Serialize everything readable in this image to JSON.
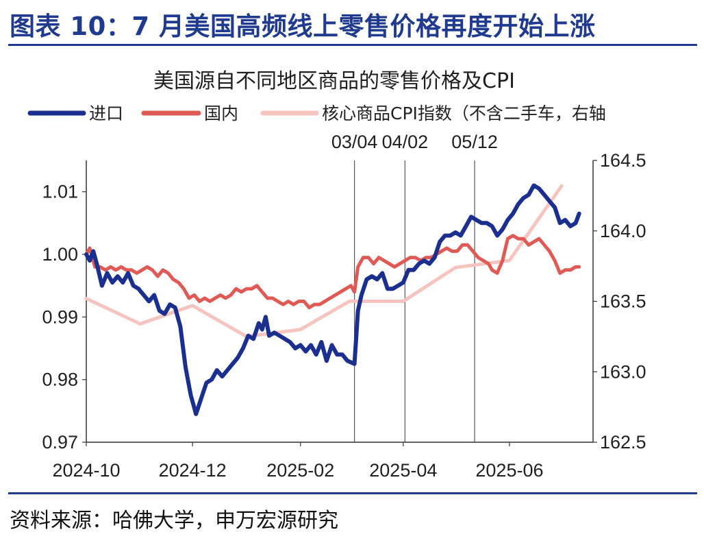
{
  "header": {
    "title": "图表 10：7 月美国高频线上零售价格再度开始上涨"
  },
  "footer": {
    "source": "资料来源：哈佛大学，申万宏源研究"
  },
  "colors": {
    "accent": "#1f3a8f",
    "imports": "#1b2f8f",
    "domestic": "#e05a55",
    "cpi": "#f6c4bf"
  },
  "chart_data": {
    "type": "line",
    "title": "美国源自不同地区商品的零售价格及CPI",
    "x_axis": {
      "range": [
        "2024-10-01",
        "2025-07-19"
      ],
      "tick_labels": [
        {
          "date": "2024-10-01",
          "label": "2024-10"
        },
        {
          "date": "2024-12-01",
          "label": "2024-12"
        },
        {
          "date": "2025-02-01",
          "label": "2025-02"
        },
        {
          "date": "2025-04-01",
          "label": "2025-04"
        },
        {
          "date": "2025-06-01",
          "label": "2025-06"
        }
      ]
    },
    "y_left": {
      "min": 0.97,
      "max": 1.015,
      "ticks": [
        0.97,
        0.98,
        0.99,
        1.0,
        1.01
      ],
      "tick_labels": [
        "0.97",
        "0.98",
        "0.99",
        "1.00",
        "1.01"
      ]
    },
    "y_right": {
      "min": 162.5,
      "max": 164.5,
      "ticks": [
        162.5,
        163.0,
        163.5,
        164.0,
        164.5
      ],
      "tick_labels": [
        "162.5",
        "163.0",
        "163.5",
        "164.0",
        "164.5"
      ]
    },
    "vlines": [
      {
        "date": "2025-03-04",
        "label": "03/04"
      },
      {
        "date": "2025-04-02",
        "label": "04/02"
      },
      {
        "date": "2025-05-12",
        "label": "05/12"
      }
    ],
    "legend_position": "top",
    "series": [
      {
        "name": "进口",
        "axis": "left",
        "color": "#1b2f8f",
        "points": [
          [
            "2024-10-01",
            1.0
          ],
          [
            "2024-10-03",
            0.999
          ],
          [
            "2024-10-05",
            1.0005
          ],
          [
            "2024-10-07",
            0.9985
          ],
          [
            "2024-10-10",
            0.995
          ],
          [
            "2024-10-13",
            0.997
          ],
          [
            "2024-10-16",
            0.9955
          ],
          [
            "2024-10-19",
            0.9965
          ],
          [
            "2024-10-22",
            0.9955
          ],
          [
            "2024-10-25",
            0.997
          ],
          [
            "2024-10-28",
            0.995
          ],
          [
            "2024-10-31",
            0.9945
          ],
          [
            "2024-11-03",
            0.9935
          ],
          [
            "2024-11-06",
            0.9925
          ],
          [
            "2024-11-09",
            0.9935
          ],
          [
            "2024-11-12",
            0.991
          ],
          [
            "2024-11-15",
            0.9905
          ],
          [
            "2024-11-18",
            0.992
          ],
          [
            "2024-11-21",
            0.9915
          ],
          [
            "2024-11-24",
            0.9885
          ],
          [
            "2024-11-27",
            0.982
          ],
          [
            "2024-11-30",
            0.9775
          ],
          [
            "2024-12-03",
            0.9745
          ],
          [
            "2024-12-06",
            0.977
          ],
          [
            "2024-12-09",
            0.9795
          ],
          [
            "2024-12-12",
            0.98
          ],
          [
            "2024-12-15",
            0.9815
          ],
          [
            "2024-12-18",
            0.9805
          ],
          [
            "2024-12-21",
            0.9815
          ],
          [
            "2024-12-24",
            0.9825
          ],
          [
            "2024-12-27",
            0.9835
          ],
          [
            "2024-12-30",
            0.985
          ],
          [
            "2025-01-02",
            0.987
          ],
          [
            "2025-01-05",
            0.9865
          ],
          [
            "2025-01-08",
            0.989
          ],
          [
            "2025-01-10",
            0.988
          ],
          [
            "2025-01-12",
            0.99
          ],
          [
            "2025-01-14",
            0.987
          ],
          [
            "2025-01-17",
            0.9875
          ],
          [
            "2025-01-20",
            0.987
          ],
          [
            "2025-01-23",
            0.9865
          ],
          [
            "2025-01-26",
            0.986
          ],
          [
            "2025-01-29",
            0.985
          ],
          [
            "2025-02-01",
            0.9855
          ],
          [
            "2025-02-04",
            0.9845
          ],
          [
            "2025-02-07",
            0.9855
          ],
          [
            "2025-02-10",
            0.984
          ],
          [
            "2025-02-13",
            0.986
          ],
          [
            "2025-02-16",
            0.983
          ],
          [
            "2025-02-19",
            0.9855
          ],
          [
            "2025-02-22",
            0.984
          ],
          [
            "2025-02-25",
            0.984
          ],
          [
            "2025-02-28",
            0.983
          ],
          [
            "2025-03-04",
            0.9825
          ],
          [
            "2025-03-06",
            0.991
          ],
          [
            "2025-03-08",
            0.9935
          ],
          [
            "2025-03-11",
            0.996
          ],
          [
            "2025-03-14",
            0.9965
          ],
          [
            "2025-03-17",
            0.996
          ],
          [
            "2025-03-20",
            0.997
          ],
          [
            "2025-03-23",
            0.9945
          ],
          [
            "2025-03-26",
            0.9945
          ],
          [
            "2025-03-29",
            0.995
          ],
          [
            "2025-04-01",
            0.9955
          ],
          [
            "2025-04-04",
            0.9975
          ],
          [
            "2025-04-07",
            0.9975
          ],
          [
            "2025-04-10",
            0.9985
          ],
          [
            "2025-04-13",
            0.999
          ],
          [
            "2025-04-16",
            0.9985
          ],
          [
            "2025-04-19",
            0.9995
          ],
          [
            "2025-04-22",
            1.002
          ],
          [
            "2025-04-25",
            1.003
          ],
          [
            "2025-04-28",
            1.003
          ],
          [
            "2025-05-01",
            1.0035
          ],
          [
            "2025-05-04",
            1.003
          ],
          [
            "2025-05-07",
            1.0045
          ],
          [
            "2025-05-10",
            1.006
          ],
          [
            "2025-05-13",
            1.0055
          ],
          [
            "2025-05-16",
            1.005
          ],
          [
            "2025-05-19",
            1.005
          ],
          [
            "2025-05-22",
            1.0045
          ],
          [
            "2025-05-25",
            1.003
          ],
          [
            "2025-05-28",
            1.004
          ],
          [
            "2025-05-31",
            1.0055
          ],
          [
            "2025-06-03",
            1.0065
          ],
          [
            "2025-06-06",
            1.008
          ],
          [
            "2025-06-09",
            1.009
          ],
          [
            "2025-06-12",
            1.0095
          ],
          [
            "2025-06-15",
            1.011
          ],
          [
            "2025-06-18",
            1.0105
          ],
          [
            "2025-06-21",
            1.0095
          ],
          [
            "2025-06-24",
            1.0085
          ],
          [
            "2025-06-27",
            1.0075
          ],
          [
            "2025-06-30",
            1.005
          ],
          [
            "2025-07-03",
            1.0055
          ],
          [
            "2025-07-06",
            1.0045
          ],
          [
            "2025-07-09",
            1.005
          ],
          [
            "2025-07-11",
            1.0065
          ]
        ]
      },
      {
        "name": "国内",
        "axis": "left",
        "color": "#e05a55",
        "points": [
          [
            "2024-10-01",
            1.0
          ],
          [
            "2024-10-03",
            1.001
          ],
          [
            "2024-10-06",
            0.998
          ],
          [
            "2024-10-09",
            0.998
          ],
          [
            "2024-10-12",
            0.9975
          ],
          [
            "2024-10-15",
            0.998
          ],
          [
            "2024-10-18",
            0.9975
          ],
          [
            "2024-10-21",
            0.998
          ],
          [
            "2024-10-24",
            0.9975
          ],
          [
            "2024-10-27",
            0.9975
          ],
          [
            "2024-10-30",
            0.997
          ],
          [
            "2024-11-02",
            0.9975
          ],
          [
            "2024-11-05",
            0.998
          ],
          [
            "2024-11-08",
            0.9975
          ],
          [
            "2024-11-11",
            0.9965
          ],
          [
            "2024-11-14",
            0.9975
          ],
          [
            "2024-11-17",
            0.997
          ],
          [
            "2024-11-20",
            0.996
          ],
          [
            "2024-11-23",
            0.9955
          ],
          [
            "2024-11-26",
            0.9945
          ],
          [
            "2024-11-29",
            0.993
          ],
          [
            "2024-12-02",
            0.9935
          ],
          [
            "2024-12-05",
            0.9925
          ],
          [
            "2024-12-08",
            0.993
          ],
          [
            "2024-12-11",
            0.9925
          ],
          [
            "2024-12-14",
            0.993
          ],
          [
            "2024-12-17",
            0.9935
          ],
          [
            "2024-12-20",
            0.993
          ],
          [
            "2024-12-23",
            0.9935
          ],
          [
            "2024-12-26",
            0.9945
          ],
          [
            "2024-12-29",
            0.994
          ],
          [
            "2025-01-01",
            0.9945
          ],
          [
            "2025-01-04",
            0.9945
          ],
          [
            "2025-01-07",
            0.995
          ],
          [
            "2025-01-10",
            0.994
          ],
          [
            "2025-01-13",
            0.993
          ],
          [
            "2025-01-16",
            0.993
          ],
          [
            "2025-01-19",
            0.9925
          ],
          [
            "2025-01-22",
            0.992
          ],
          [
            "2025-01-25",
            0.9925
          ],
          [
            "2025-01-28",
            0.992
          ],
          [
            "2025-01-31",
            0.9925
          ],
          [
            "2025-02-03",
            0.9925
          ],
          [
            "2025-02-06",
            0.9915
          ],
          [
            "2025-02-09",
            0.992
          ],
          [
            "2025-02-12",
            0.992
          ],
          [
            "2025-02-15",
            0.9925
          ],
          [
            "2025-02-18",
            0.993
          ],
          [
            "2025-02-21",
            0.9935
          ],
          [
            "2025-02-24",
            0.994
          ],
          [
            "2025-02-27",
            0.9945
          ],
          [
            "2025-03-02",
            0.995
          ],
          [
            "2025-03-04",
            0.994
          ],
          [
            "2025-03-06",
            0.998
          ],
          [
            "2025-03-09",
            0.9995
          ],
          [
            "2025-03-12",
            0.9995
          ],
          [
            "2025-03-15",
            0.9985
          ],
          [
            "2025-03-18",
            0.9995
          ],
          [
            "2025-03-21",
            0.999
          ],
          [
            "2025-03-24",
            0.9985
          ],
          [
            "2025-03-27",
            0.998
          ],
          [
            "2025-03-30",
            0.9985
          ],
          [
            "2025-04-02",
            0.999
          ],
          [
            "2025-04-05",
            0.9995
          ],
          [
            "2025-04-08",
            0.9995
          ],
          [
            "2025-04-11",
            0.999
          ],
          [
            "2025-04-14",
            0.9995
          ],
          [
            "2025-04-17",
            0.9995
          ],
          [
            "2025-04-20",
            1.0
          ],
          [
            "2025-04-23",
            1.0005
          ],
          [
            "2025-04-26",
            1.001
          ],
          [
            "2025-04-29",
            1.0005
          ],
          [
            "2025-05-02",
            1.0005
          ],
          [
            "2025-05-05",
            1.0015
          ],
          [
            "2025-05-08",
            1.0015
          ],
          [
            "2025-05-11",
            1.0005
          ],
          [
            "2025-05-14",
            0.9995
          ],
          [
            "2025-05-17",
            0.999
          ],
          [
            "2025-05-20",
            0.9985
          ],
          [
            "2025-05-22",
            0.9975
          ],
          [
            "2025-05-25",
            0.997
          ],
          [
            "2025-05-28",
            0.999
          ],
          [
            "2025-05-31",
            1.0025
          ],
          [
            "2025-06-03",
            1.003
          ],
          [
            "2025-06-06",
            1.0025
          ],
          [
            "2025-06-09",
            1.0025
          ],
          [
            "2025-06-12",
            1.0015
          ],
          [
            "2025-06-15",
            1.002
          ],
          [
            "2025-06-18",
            1.0025
          ],
          [
            "2025-06-21",
            1.0015
          ],
          [
            "2025-06-24",
            1.0005
          ],
          [
            "2025-06-27",
            0.999
          ],
          [
            "2025-06-30",
            0.997
          ],
          [
            "2025-07-03",
            0.9975
          ],
          [
            "2025-07-06",
            0.9975
          ],
          [
            "2025-07-09",
            0.998
          ],
          [
            "2025-07-11",
            0.998
          ]
        ]
      },
      {
        "name": "核心商品CPI指数（不含二手车，右轴",
        "axis": "right",
        "color": "#f6c4bf",
        "points": [
          [
            "2024-10-01",
            163.52
          ],
          [
            "2024-11-01",
            163.34
          ],
          [
            "2024-12-01",
            163.47
          ],
          [
            "2025-01-01",
            163.25
          ],
          [
            "2025-02-01",
            163.3
          ],
          [
            "2025-03-01",
            163.5
          ],
          [
            "2025-04-01",
            163.5
          ],
          [
            "2025-05-01",
            163.74
          ],
          [
            "2025-06-01",
            163.79
          ],
          [
            "2025-07-01",
            164.32
          ]
        ]
      }
    ]
  }
}
